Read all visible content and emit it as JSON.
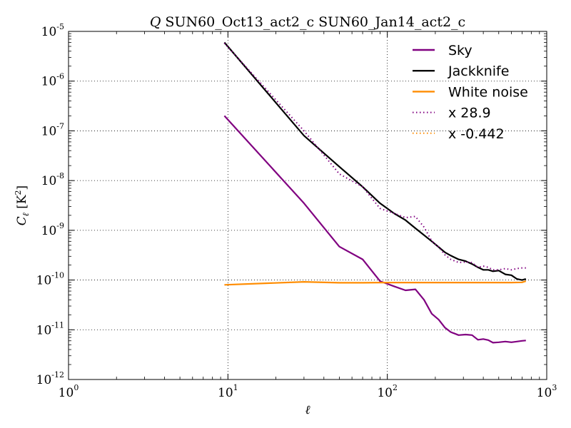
{
  "chart_data": {
    "type": "line",
    "title_var": "Q",
    "title_rest": " SUN60_Oct13_act2_c SUN60_Jan14_act2_c",
    "xlabel": "ℓ",
    "ylabel_sym": "C",
    "ylabel_sub": "ℓ",
    "ylabel_unit_open": " [K",
    "ylabel_unit_exp": "2",
    "ylabel_unit_close": "]",
    "xscale": "log",
    "yscale": "log",
    "xlim": [
      1,
      1000
    ],
    "ylim": [
      1e-12,
      1e-05
    ],
    "grid": true,
    "legend_position": "top-right",
    "xticks": [
      {
        "value": 1,
        "base": "10",
        "exp": "0"
      },
      {
        "value": 10,
        "base": "10",
        "exp": "1"
      },
      {
        "value": 100,
        "base": "10",
        "exp": "2"
      },
      {
        "value": 1000,
        "base": "10",
        "exp": "3"
      }
    ],
    "yticks": [
      {
        "value": 1e-05,
        "base": "10",
        "exp": "-5"
      },
      {
        "value": 1e-06,
        "base": "10",
        "exp": "-6"
      },
      {
        "value": 1e-07,
        "base": "10",
        "exp": "-7"
      },
      {
        "value": 1e-08,
        "base": "10",
        "exp": "-8"
      },
      {
        "value": 1e-09,
        "base": "10",
        "exp": "-9"
      },
      {
        "value": 1e-10,
        "base": "10",
        "exp": "-10"
      },
      {
        "value": 1e-11,
        "base": "10",
        "exp": "-11"
      },
      {
        "value": 1e-12,
        "base": "10",
        "exp": "-12"
      }
    ],
    "series": [
      {
        "name": "Sky",
        "color": "#800080",
        "style": "solid",
        "x": [
          9.5,
          30,
          50,
          70,
          90,
          110,
          130,
          150,
          170,
          190,
          210,
          230,
          250,
          280,
          310,
          340,
          370,
          400,
          430,
          460,
          500,
          550,
          600,
          650,
          700,
          740
        ],
        "y": [
          2e-07,
          3.5e-09,
          4.7e-10,
          2.6e-10,
          9.5e-11,
          7.5e-11,
          6.2e-11,
          6.5e-11,
          4e-11,
          2.1e-11,
          1.6e-11,
          1.1e-11,
          9e-12,
          7.8e-12,
          8e-12,
          7.8e-12,
          6.3e-12,
          6.5e-12,
          6.2e-12,
          5.5e-12,
          5.6e-12,
          5.8e-12,
          5.6e-12,
          5.8e-12,
          6e-12,
          6.1e-12
        ]
      },
      {
        "name": "Jackknife",
        "color": "#000000",
        "style": "solid",
        "x": [
          9.5,
          30,
          50,
          70,
          90,
          110,
          130,
          150,
          170,
          190,
          210,
          230,
          250,
          280,
          310,
          340,
          370,
          400,
          430,
          460,
          500,
          550,
          600,
          650,
          700,
          740
        ],
        "y": [
          6e-06,
          8e-08,
          1.9e-08,
          7.5e-09,
          3.5e-09,
          2.2e-09,
          1.6e-09,
          1.1e-09,
          8e-10,
          6e-10,
          4.6e-10,
          3.6e-10,
          3.1e-10,
          2.6e-10,
          2.4e-10,
          2.1e-10,
          1.8e-10,
          1.6e-10,
          1.6e-10,
          1.5e-10,
          1.55e-10,
          1.3e-10,
          1.25e-10,
          1.05e-10,
          1e-10,
          1.05e-10
        ]
      },
      {
        "name": "White noise",
        "color": "#ff8c00",
        "style": "solid",
        "x": [
          9.5,
          30,
          50,
          70,
          90,
          110,
          130,
          150,
          200,
          300,
          400,
          500,
          600,
          700,
          740
        ],
        "y": [
          8e-11,
          9.2e-11,
          8.8e-11,
          8.8e-11,
          8.9e-11,
          8.9e-11,
          8.9e-11,
          8.9e-11,
          8.9e-11,
          8.9e-11,
          8.9e-11,
          8.9e-11,
          8.9e-11,
          9e-11,
          9.5e-11
        ]
      },
      {
        "name": "x 28.9",
        "color": "#800080",
        "style": "dotted",
        "x": [
          9.5,
          30,
          50,
          70,
          90,
          110,
          130,
          150,
          170,
          190,
          210,
          230,
          250,
          280,
          310,
          340,
          370,
          400,
          430,
          460,
          500,
          550,
          600,
          650,
          700,
          740
        ],
        "y": [
          5.8e-06,
          1e-07,
          1.36e-08,
          7.5e-09,
          2.75e-09,
          2.2e-09,
          1.8e-09,
          1.9e-09,
          1.16e-09,
          6.1e-10,
          4.6e-10,
          3.2e-10,
          2.6e-10,
          2.25e-10,
          2.3e-10,
          2.25e-10,
          1.8e-10,
          1.9e-10,
          1.8e-10,
          1.6e-10,
          1.6e-10,
          1.7e-10,
          1.6e-10,
          1.7e-10,
          1.75e-10,
          1.75e-10
        ]
      },
      {
        "name": "x -0.442",
        "color": "#ff8c00",
        "style": "dotted",
        "x": [],
        "y": []
      }
    ]
  }
}
